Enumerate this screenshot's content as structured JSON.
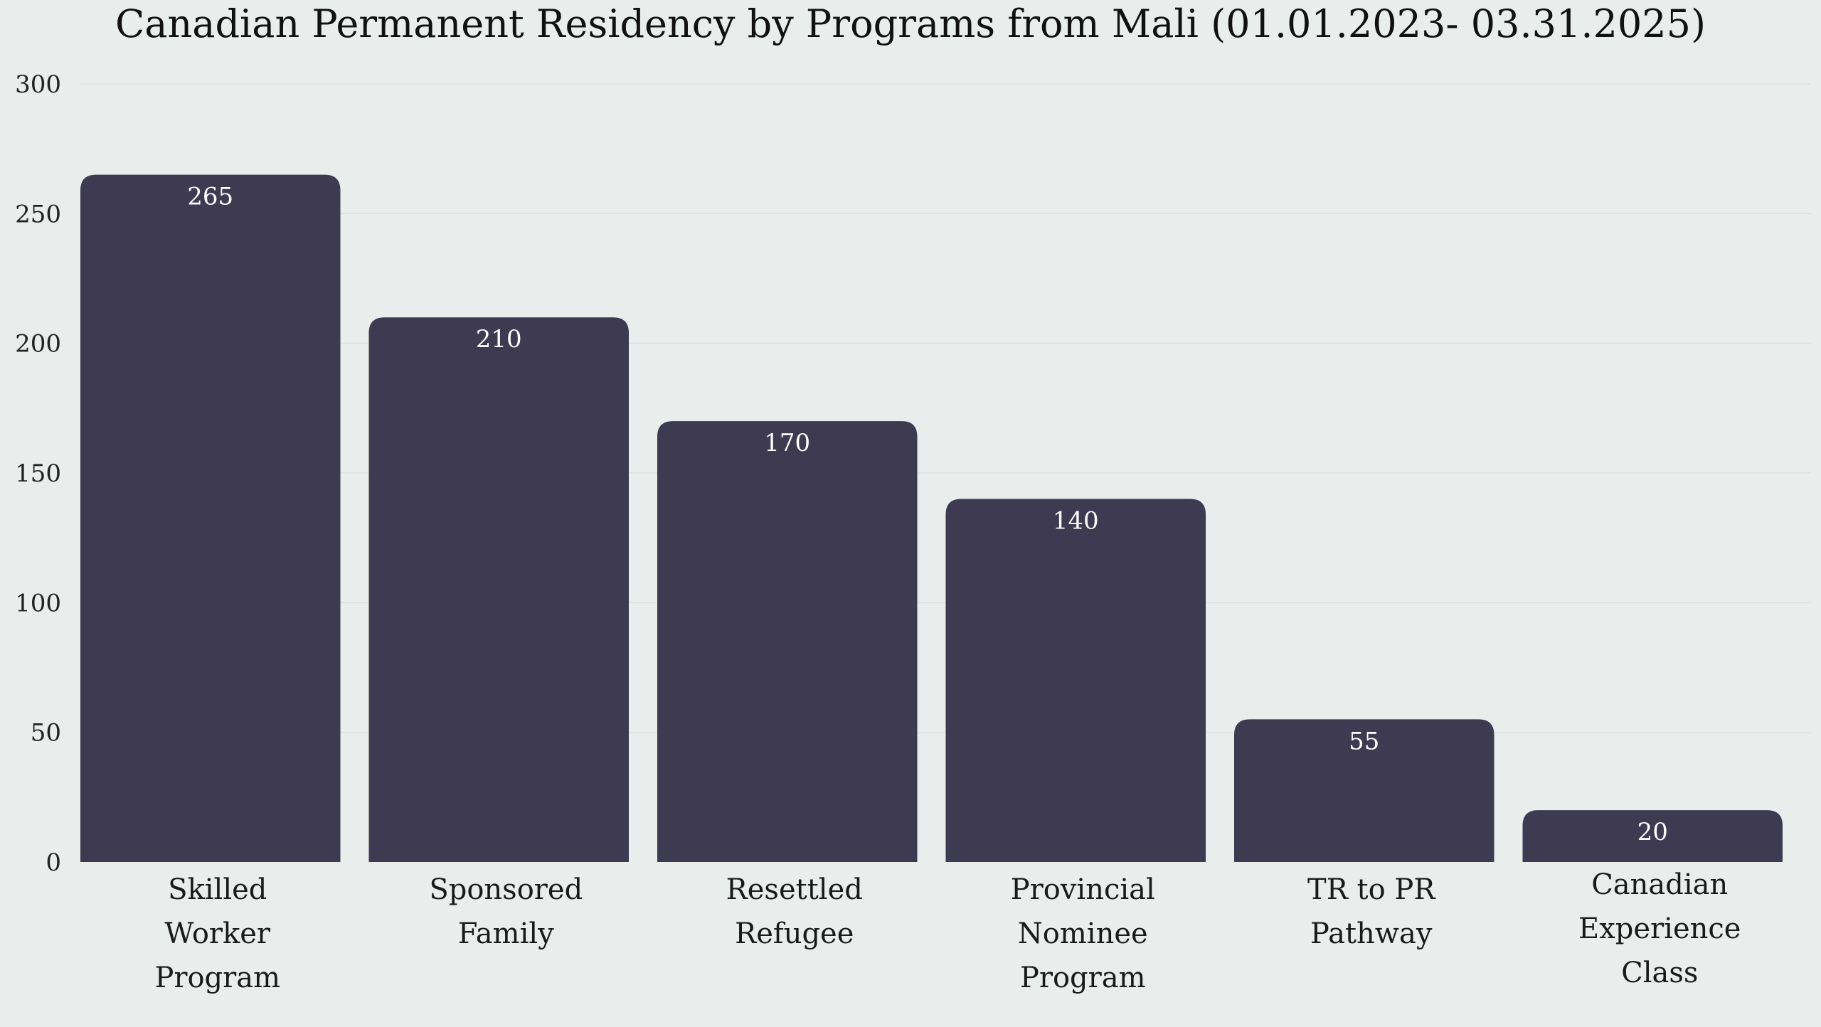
{
  "chart_data": {
    "type": "bar",
    "title": "Canadian Permanent Residency by Programs from Mali (01.01.2023- 03.31.2025)",
    "categories": [
      "Skilled Worker Program",
      "Sponsored Family",
      "Resettled Refugee",
      "Provincial Nominee Program",
      "TR to PR Pathway",
      "Canadian Experience Class"
    ],
    "category_lines": [
      [
        "Skilled",
        "Worker",
        "Program"
      ],
      [
        "Sponsored",
        "Family"
      ],
      [
        "Resettled",
        "Refugee"
      ],
      [
        "Provincial",
        "Nominee",
        "Program"
      ],
      [
        "TR to PR",
        "Pathway"
      ],
      [
        "Canadian",
        "Experience",
        "Class"
      ]
    ],
    "values": [
      265,
      210,
      170,
      140,
      55,
      20
    ],
    "data_labels": [
      "265",
      "210",
      "170",
      "140",
      "55",
      "20"
    ],
    "xlabel": "",
    "ylabel": "",
    "ylim": [
      0,
      300
    ],
    "yticks": [
      0,
      50,
      100,
      150,
      200,
      250,
      300
    ],
    "ytick_labels": [
      "0",
      "50",
      "100",
      "150",
      "200",
      "250",
      "300"
    ],
    "grid": true,
    "legend": "none",
    "colors": {
      "bar": "#3d3a52",
      "background": "#e9edeb",
      "grid": "#dde1df",
      "data_label": "#ffffff",
      "text": "#111111"
    }
  }
}
